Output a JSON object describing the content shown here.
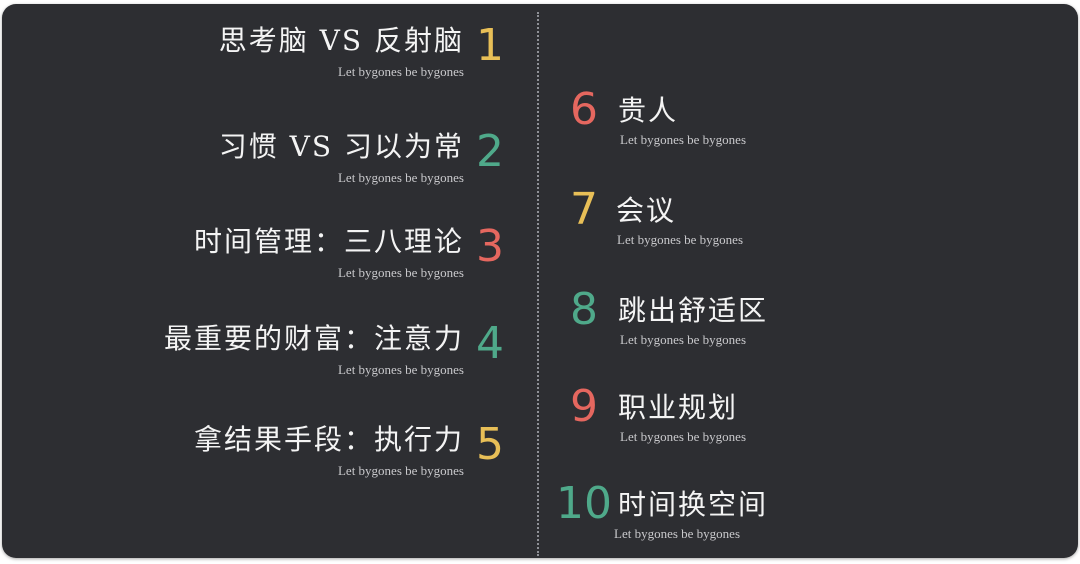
{
  "colors": {
    "background": "#2d2e32",
    "title": "#f4f4f4",
    "subtitle": "#c9c9cc",
    "yellow": "#e8bf57",
    "green": "#4fa98a",
    "red": "#e5675f"
  },
  "left_items": [
    {
      "number": "1",
      "title": "思考脑 VS 反射脑",
      "subtitle": "Let bygones be bygones",
      "color": "#e8bf57"
    },
    {
      "number": "2",
      "title": "习惯 VS 习以为常",
      "subtitle": "Let bygones be bygones",
      "color": "#4fa98a"
    },
    {
      "number": "3",
      "title": "时间管理：三八理论",
      "subtitle": "Let bygones be bygones",
      "color": "#e5675f"
    },
    {
      "number": "4",
      "title": "最重要的财富：注意力",
      "subtitle": "Let bygones be bygones",
      "color": "#4fa98a"
    },
    {
      "number": "5",
      "title": "拿结果手段：执行力",
      "subtitle": "Let bygones be bygones",
      "color": "#e8bf57"
    }
  ],
  "right_items": [
    {
      "number": "6",
      "title": "贵人",
      "subtitle": "Let bygones be bygones",
      "color": "#e5675f"
    },
    {
      "number": "7",
      "title": "会议",
      "subtitle": "Let bygones be bygones",
      "color": "#e8bf57"
    },
    {
      "number": "8",
      "title": "跳出舒适区",
      "subtitle": "Let bygones be bygones",
      "color": "#4fa98a"
    },
    {
      "number": "9",
      "title": "职业规划",
      "subtitle": "Let bygones be bygones",
      "color": "#e5675f"
    },
    {
      "number": "10",
      "title": "时间换空间",
      "subtitle": "Let bygones be bygones",
      "color": "#4fa98a"
    }
  ]
}
